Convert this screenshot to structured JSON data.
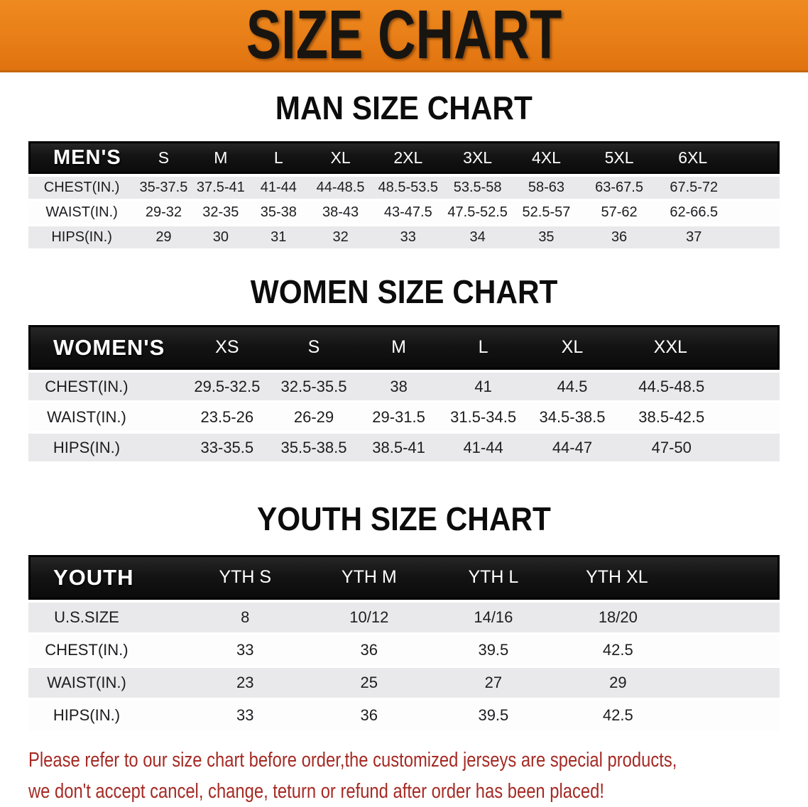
{
  "banner": {
    "title": "SIZE CHART"
  },
  "colors": {
    "banner_orange": "#e87e17",
    "header_black": "#141414",
    "row_gray": "#e9e9eb",
    "row_white": "#fdfdfd",
    "disclaimer_red": "#a52a24"
  },
  "sections": [
    {
      "title": "MAN SIZE CHART",
      "header_label": "MEN'S",
      "columns": [
        "S",
        "M",
        "L",
        "XL",
        "2XL",
        "3XL",
        "4XL",
        "5XL",
        "6XL"
      ],
      "rows": [
        {
          "label": "CHEST(IN.)",
          "values": [
            "35-37.5",
            "37.5-41",
            "41-44",
            "44-48.5",
            "48.5-53.5",
            "53.5-58",
            "58-63",
            "63-67.5",
            "67.5-72"
          ]
        },
        {
          "label": "WAIST(IN.)",
          "values": [
            "29-32",
            "32-35",
            "35-38",
            "38-43",
            "43-47.5",
            "47.5-52.5",
            "52.5-57",
            "57-62",
            "62-66.5"
          ]
        },
        {
          "label": "HIPS(IN.)",
          "values": [
            "29",
            "30",
            "31",
            "32",
            "33",
            "34",
            "35",
            "36",
            "37"
          ]
        }
      ]
    },
    {
      "title": "WOMEN SIZE CHART",
      "header_label": "WOMEN'S",
      "columns": [
        "XS",
        "S",
        "M",
        "L",
        "XL",
        "XXL"
      ],
      "rows": [
        {
          "label": "CHEST(IN.)",
          "values": [
            "29.5-32.5",
            "32.5-35.5",
            "38",
            "41",
            "44.5",
            "44.5-48.5"
          ]
        },
        {
          "label": "WAIST(IN.)",
          "values": [
            "23.5-26",
            "26-29",
            "29-31.5",
            "31.5-34.5",
            "34.5-38.5",
            "38.5-42.5"
          ]
        },
        {
          "label": "HIPS(IN.)",
          "values": [
            "33-35.5",
            "35.5-38.5",
            "38.5-41",
            "41-44",
            "44-47",
            "47-50"
          ]
        }
      ]
    },
    {
      "title": "YOUTH SIZE CHART",
      "header_label": "YOUTH",
      "columns": [
        "YTH S",
        "YTH M",
        "YTH L",
        "YTH XL"
      ],
      "rows": [
        {
          "label": "U.S.SIZE",
          "values": [
            "8",
            "10/12",
            "14/16",
            "18/20"
          ]
        },
        {
          "label": "CHEST(IN.)",
          "values": [
            "33",
            "36",
            "39.5",
            "42.5"
          ]
        },
        {
          "label": "WAIST(IN.)",
          "values": [
            "23",
            "25",
            "27",
            "29"
          ]
        },
        {
          "label": "HIPS(IN.)",
          "values": [
            "33",
            "36",
            "39.5",
            "42.5"
          ]
        }
      ]
    }
  ],
  "disclaimer": {
    "line1": "Please refer to our size chart before order,the customized jerseys are special products,",
    "line2": "we don't accept cancel, change, teturn or refund after order has been placed!"
  }
}
